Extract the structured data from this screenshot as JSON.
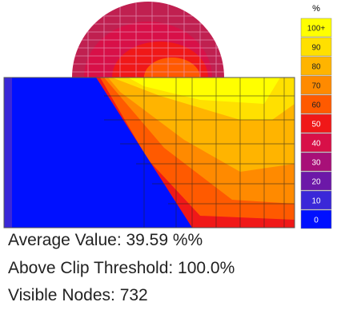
{
  "legend": {
    "title": "%",
    "items": [
      {
        "label": "100+",
        "color": "#ffff00"
      },
      {
        "label": "90",
        "color": "#ffe000"
      },
      {
        "label": "80",
        "color": "#ffb400"
      },
      {
        "label": "70",
        "color": "#ff8a00"
      },
      {
        "label": "60",
        "color": "#ff5a00"
      },
      {
        "label": "50",
        "color": "#f01818"
      },
      {
        "label": "40",
        "color": "#d81048"
      },
      {
        "label": "30",
        "color": "#a81078"
      },
      {
        "label": "20",
        "color": "#6c18a8"
      },
      {
        "label": "10",
        "color": "#3a28d8"
      },
      {
        "label": "0",
        "color": "#0010ff"
      }
    ]
  },
  "stats": [
    "Average Value: 39.59 %%",
    "Above Clip Threshold: 100.0%",
    "Visible Nodes: 732"
  ]
}
